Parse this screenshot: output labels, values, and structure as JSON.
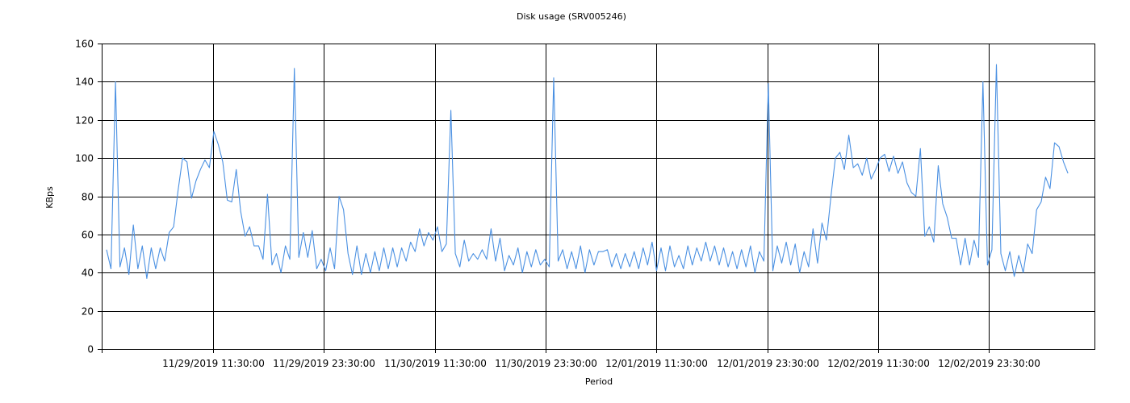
{
  "chart_data": {
    "type": "line",
    "title": "Disk usage (SRV005246)",
    "xlabel": "Period",
    "ylabel": "KBps",
    "ylim": [
      0,
      160
    ],
    "yticks": [
      0,
      20,
      40,
      60,
      80,
      100,
      120,
      140,
      160
    ],
    "xticks": [
      "11/29/2019 11:30:00",
      "11/29/2019 23:30:00",
      "11/30/2019 11:30:00",
      "11/30/2019 23:30:00",
      "12/01/2019 11:30:00",
      "12/01/2019 23:30:00",
      "12/02/2019 11:30:00",
      "12/02/2019 23:30:00"
    ],
    "grid": true,
    "colors": {
      "series": "#4a90e2",
      "grid": "#000000"
    },
    "series": [
      {
        "values": [
          52,
          42,
          140,
          43,
          53,
          39,
          65,
          42,
          54,
          37,
          53,
          42,
          53,
          46,
          61,
          64,
          83,
          100,
          98,
          79,
          88,
          94,
          99,
          95,
          114,
          107,
          98,
          78,
          77,
          94,
          72,
          59,
          64,
          54,
          54,
          47,
          81,
          44,
          50,
          40,
          54,
          47,
          147,
          48,
          61,
          48,
          62,
          42,
          47,
          41,
          53,
          42,
          80,
          73,
          50,
          39,
          54,
          39,
          50,
          40,
          51,
          41,
          53,
          42,
          53,
          43,
          53,
          46,
          56,
          51,
          63,
          54,
          61,
          57,
          64,
          51,
          55,
          125,
          50,
          43,
          57,
          46,
          50,
          47,
          52,
          47,
          63,
          46,
          58,
          41,
          49,
          44,
          53,
          40,
          51,
          43,
          52,
          44,
          47,
          43,
          142,
          46,
          52,
          42,
          51,
          42,
          54,
          40,
          52,
          44,
          51,
          51,
          52,
          43,
          50,
          42,
          50,
          43,
          51,
          42,
          53,
          44,
          56,
          41,
          53,
          41,
          54,
          43,
          49,
          42,
          54,
          44,
          53,
          46,
          56,
          46,
          54,
          44,
          53,
          43,
          51,
          42,
          52,
          43,
          54,
          40,
          51,
          46,
          139,
          41,
          54,
          45,
          56,
          44,
          55,
          40,
          51,
          43,
          63,
          45,
          66,
          57,
          80,
          100,
          103,
          94,
          112,
          95,
          97,
          91,
          100,
          89,
          94,
          100,
          102,
          93,
          101,
          92,
          98,
          87,
          82,
          80,
          105,
          59,
          64,
          56,
          96,
          76,
          69,
          58,
          58,
          44,
          58,
          44,
          57,
          48,
          140,
          44,
          52,
          149,
          50,
          41,
          51,
          38,
          49,
          40,
          55,
          50,
          73,
          77,
          90,
          84,
          108,
          106,
          98,
          92
        ]
      }
    ]
  }
}
